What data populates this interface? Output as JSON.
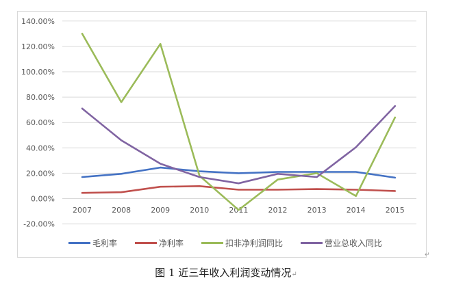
{
  "chart_data": {
    "type": "line",
    "title": "",
    "xlabel": "",
    "ylabel": "",
    "categories": [
      "2007",
      "2008",
      "2009",
      "2010",
      "2011",
      "2012",
      "2013",
      "2014",
      "2015"
    ],
    "ylim": [
      -20,
      140
    ],
    "yticks": [
      "-20.00%",
      "0.00%",
      "20.00%",
      "40.00%",
      "60.00%",
      "80.00%",
      "100.00%",
      "120.00%",
      "140.00%"
    ],
    "ytick_values": [
      -20,
      0,
      20,
      40,
      60,
      80,
      100,
      120,
      140
    ],
    "grid": true,
    "legend_position": "bottom",
    "series": [
      {
        "name": "毛利率",
        "color": "#4472c4",
        "values": [
          17,
          19.5,
          24.5,
          21.5,
          20,
          21,
          21,
          21,
          16.5
        ]
      },
      {
        "name": "净利率",
        "color": "#c0504d",
        "values": [
          4.5,
          5,
          9.3,
          9.8,
          7,
          7,
          7.5,
          7,
          6
        ]
      },
      {
        "name": "扣非净利润同比",
        "color": "#9bbb59",
        "values": [
          130,
          76,
          122,
          18,
          -9,
          15,
          20,
          2,
          64
        ]
      },
      {
        "name": "营业总收入同比",
        "color": "#8064a2",
        "values": [
          71,
          46,
          27.5,
          17,
          12,
          19.5,
          17,
          40.5,
          73
        ]
      }
    ]
  },
  "legend": {
    "items": [
      {
        "label": "毛利率",
        "color": "#4472c4"
      },
      {
        "label": "净利率",
        "color": "#c0504d"
      },
      {
        "label": "扣非净利润同比",
        "color": "#9bbb59"
      },
      {
        "label": "营业总收入同比",
        "color": "#8064a2"
      }
    ]
  },
  "caption": {
    "text": "图 1  近三年收入利润变动情况",
    "mark": "↵"
  },
  "paragraph_mark": "↵"
}
